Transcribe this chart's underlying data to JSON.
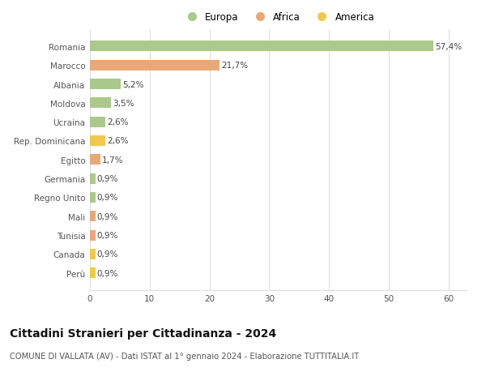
{
  "categories": [
    "Romania",
    "Marocco",
    "Albania",
    "Moldova",
    "Ucraina",
    "Rep. Dominicana",
    "Egitto",
    "Germania",
    "Regno Unito",
    "Mali",
    "Tunisia",
    "Canada",
    "Perù"
  ],
  "values": [
    57.4,
    21.7,
    5.2,
    3.5,
    2.6,
    2.6,
    1.7,
    0.9,
    0.9,
    0.9,
    0.9,
    0.9,
    0.9
  ],
  "labels": [
    "57,4%",
    "21,7%",
    "5,2%",
    "3,5%",
    "2,6%",
    "2,6%",
    "1,7%",
    "0,9%",
    "0,9%",
    "0,9%",
    "0,9%",
    "0,9%",
    "0,9%"
  ],
  "continents": [
    "Europa",
    "Africa",
    "Europa",
    "Europa",
    "Europa",
    "America",
    "Africa",
    "Europa",
    "Europa",
    "Africa",
    "Africa",
    "America",
    "America"
  ],
  "colors": {
    "Europa": "#aac98a",
    "Africa": "#e8a878",
    "America": "#f0c850"
  },
  "legend_labels": [
    "Europa",
    "Africa",
    "America"
  ],
  "legend_colors": [
    "#aac98a",
    "#e8a878",
    "#f0c850"
  ],
  "title": "Cittadini Stranieri per Cittadinanza - 2024",
  "subtitle": "COMUNE DI VALLATA (AV) - Dati ISTAT al 1° gennaio 2024 - Elaborazione TUTTITALIA.IT",
  "xlim": [
    0,
    63
  ],
  "xticks": [
    0,
    10,
    20,
    30,
    40,
    50,
    60
  ],
  "background_color": "#ffffff",
  "grid_color": "#dddddd",
  "bar_height": 0.55,
  "label_fontsize": 7.5,
  "tick_fontsize": 7.5,
  "title_fontsize": 10,
  "subtitle_fontsize": 7.2
}
